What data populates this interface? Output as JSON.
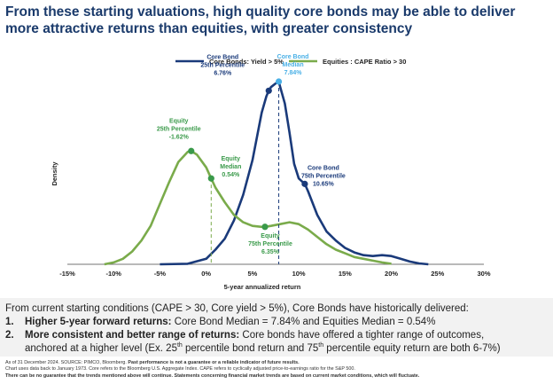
{
  "title": {
    "line1": "From these starting valuations, high quality core bonds may be able to deliver",
    "line2": "more attractive returns than equities, with greater consistency"
  },
  "chart_data": {
    "type": "line",
    "title": "",
    "xlabel": "5-year annualized return",
    "ylabel": "Density",
    "xlim": [
      -15,
      30
    ],
    "ylim": [
      0,
      1
    ],
    "x_ticks": [
      -15,
      -10,
      -5,
      0,
      5,
      10,
      15,
      20,
      25,
      30
    ],
    "x_tick_labels": [
      "-15%",
      "-10%",
      "-5%",
      "0%",
      "5%",
      "10%",
      "15%",
      "20%",
      "25%",
      "30%"
    ],
    "legend_position": "top-right",
    "colors": {
      "core": "#1a3a7a",
      "equities": "#7aab4b",
      "core_median": "#4ab0e6",
      "equities_accent": "#3a9a4a"
    },
    "series": [
      {
        "name": "Core Bonds: Yield > 5%",
        "x": [
          -5,
          -2,
          0,
          1,
          2,
          3,
          4,
          5,
          5.5,
          6,
          6.5,
          6.76,
          7,
          7.5,
          7.84,
          8,
          8.5,
          9,
          9.5,
          10,
          10.65,
          11,
          12,
          13,
          14,
          15,
          16,
          17,
          18,
          19,
          20,
          21,
          22,
          23,
          24
        ],
        "values": [
          0,
          0.003,
          0.03,
          0.08,
          0.14,
          0.24,
          0.38,
          0.57,
          0.7,
          0.83,
          0.92,
          0.95,
          0.97,
          0.99,
          1.0,
          0.97,
          0.88,
          0.72,
          0.55,
          0.47,
          0.44,
          0.4,
          0.27,
          0.18,
          0.13,
          0.09,
          0.065,
          0.05,
          0.045,
          0.05,
          0.045,
          0.03,
          0.015,
          0.005,
          0.0
        ]
      },
      {
        "name": "Equities : CAPE Ratio > 30",
        "x": [
          -11,
          -10,
          -9,
          -8,
          -7,
          -6,
          -5,
          -4,
          -3,
          -2,
          -1.62,
          -1,
          0,
          0.54,
          1,
          2,
          3,
          4,
          5,
          6,
          6.35,
          7,
          8,
          9,
          10,
          11,
          12,
          13,
          14,
          15,
          16,
          17,
          18,
          19,
          20
        ],
        "values": [
          0,
          0.01,
          0.03,
          0.07,
          0.13,
          0.21,
          0.33,
          0.45,
          0.56,
          0.615,
          0.62,
          0.6,
          0.53,
          0.47,
          0.42,
          0.34,
          0.27,
          0.23,
          0.21,
          0.205,
          0.205,
          0.21,
          0.22,
          0.23,
          0.22,
          0.19,
          0.15,
          0.11,
          0.08,
          0.06,
          0.04,
          0.03,
          0.02,
          0.01,
          0.003
        ]
      }
    ],
    "markers": [
      {
        "series": "Core Bonds: Yield > 5%",
        "x": 6.76,
        "label_line1": "Core Bond",
        "label_line2": "25th Percentile",
        "value_label": "6.76%"
      },
      {
        "series": "Core Bonds: Yield > 5%",
        "x": 7.84,
        "label_line1": "Core Bond",
        "label_line2": "Median",
        "value_label": "7.84%",
        "median": true
      },
      {
        "series": "Core Bonds: Yield > 5%",
        "x": 10.65,
        "label_line1": "Core Bond",
        "label_line2": "75th Percentile",
        "value_label": "10.65%"
      },
      {
        "series": "Equities : CAPE Ratio > 30",
        "x": -1.62,
        "label_line1": "Equity",
        "label_line2": "25th Percentile",
        "value_label": "-1.62%"
      },
      {
        "series": "Equities : CAPE Ratio > 30",
        "x": 0.54,
        "label_line1": "Equity",
        "label_line2": "Median",
        "value_label": "0.54%",
        "median": true
      },
      {
        "series": "Equities : CAPE Ratio > 30",
        "x": 6.35,
        "label_line1": "Equity",
        "label_line2": "75th Percentile",
        "value_label": "6.35%"
      }
    ]
  },
  "summary": {
    "intro": "From current starting conditions (CAPE > 30, Core yield > 5%), Core Bonds have historically delivered:",
    "point1_num": "1.",
    "point1_bold": "Higher 5-year forward returns:",
    "point1_text": " Core Bond Median = 7.84% and Equities Median = 0.54%",
    "point2_num": "2.",
    "point2_bold": "More consistent and better range of returns:",
    "point2_text": " Core bonds have offered a tighter range of outcomes,",
    "point2_cont_a": "anchored at a higher level (Ex. 25",
    "point2_sup1": "th",
    "point2_cont_b": " percentile bond return and 75",
    "point2_sup2": "th",
    "point2_cont_c": " percentile equity return are both 6-7%)"
  },
  "footer": {
    "line1_a": "As of 31 December 2024. SOURCE: PIMCO, Bloomberg. ",
    "line1_b": "Past performance is not a guarantee or a reliable indicator of future results.",
    "line2": "Chart uses data back to January 1973. Core refers to the Bloomberg U.S. Aggregate Index. CAPE refers to cyclically adjusted price-to-earnings ratio for the S&P 500.",
    "line3": "There can be no guarantee that the trends mentioned above will continue. Statements concerning financial market trends are based on current market conditions, which will fluctuate."
  }
}
